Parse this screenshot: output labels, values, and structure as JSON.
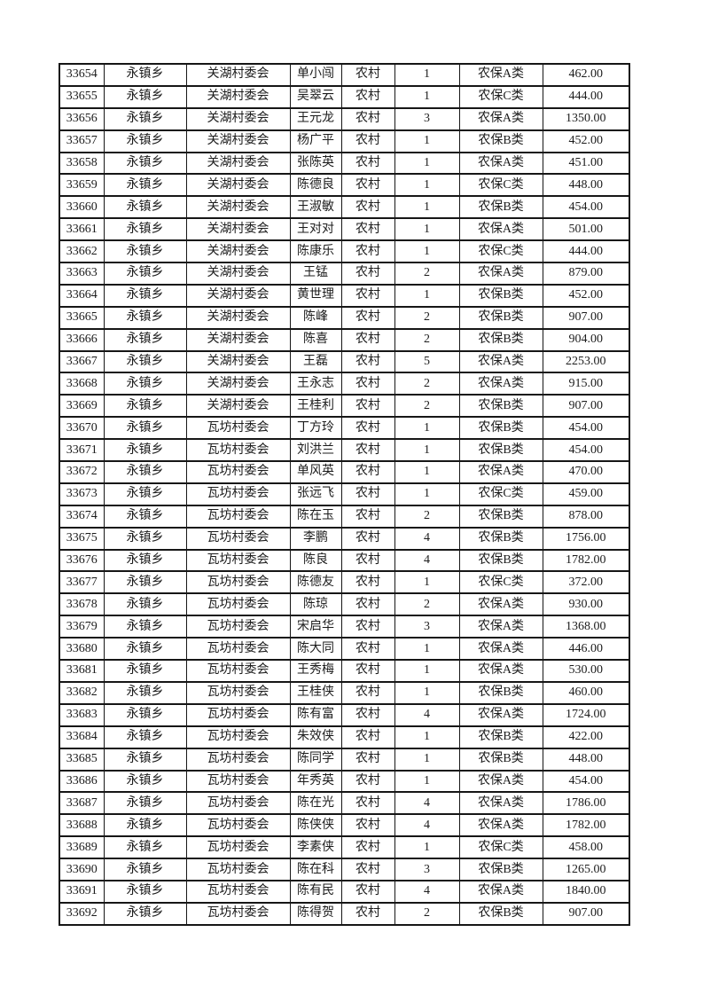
{
  "table": {
    "rows": [
      [
        "33654",
        "永镇乡",
        "关湖村委会",
        "单小闯",
        "农村",
        "1",
        "农保A类",
        "462.00"
      ],
      [
        "33655",
        "永镇乡",
        "关湖村委会",
        "吴翠云",
        "农村",
        "1",
        "农保C类",
        "444.00"
      ],
      [
        "33656",
        "永镇乡",
        "关湖村委会",
        "王元龙",
        "农村",
        "3",
        "农保A类",
        "1350.00"
      ],
      [
        "33657",
        "永镇乡",
        "关湖村委会",
        "杨广平",
        "农村",
        "1",
        "农保B类",
        "452.00"
      ],
      [
        "33658",
        "永镇乡",
        "关湖村委会",
        "张陈英",
        "农村",
        "1",
        "农保A类",
        "451.00"
      ],
      [
        "33659",
        "永镇乡",
        "关湖村委会",
        "陈德良",
        "农村",
        "1",
        "农保C类",
        "448.00"
      ],
      [
        "33660",
        "永镇乡",
        "关湖村委会",
        "王淑敏",
        "农村",
        "1",
        "农保B类",
        "454.00"
      ],
      [
        "33661",
        "永镇乡",
        "关湖村委会",
        "王对对",
        "农村",
        "1",
        "农保A类",
        "501.00"
      ],
      [
        "33662",
        "永镇乡",
        "关湖村委会",
        "陈康乐",
        "农村",
        "1",
        "农保C类",
        "444.00"
      ],
      [
        "33663",
        "永镇乡",
        "关湖村委会",
        "王锰",
        "农村",
        "2",
        "农保A类",
        "879.00"
      ],
      [
        "33664",
        "永镇乡",
        "关湖村委会",
        "黄世理",
        "农村",
        "1",
        "农保B类",
        "452.00"
      ],
      [
        "33665",
        "永镇乡",
        "关湖村委会",
        "陈峰",
        "农村",
        "2",
        "农保B类",
        "907.00"
      ],
      [
        "33666",
        "永镇乡",
        "关湖村委会",
        "陈喜",
        "农村",
        "2",
        "农保B类",
        "904.00"
      ],
      [
        "33667",
        "永镇乡",
        "关湖村委会",
        "王磊",
        "农村",
        "5",
        "农保A类",
        "2253.00"
      ],
      [
        "33668",
        "永镇乡",
        "关湖村委会",
        "王永志",
        "农村",
        "2",
        "农保A类",
        "915.00"
      ],
      [
        "33669",
        "永镇乡",
        "关湖村委会",
        "王桂利",
        "农村",
        "2",
        "农保B类",
        "907.00"
      ],
      [
        "33670",
        "永镇乡",
        "瓦坊村委会",
        "丁方玲",
        "农村",
        "1",
        "农保B类",
        "454.00"
      ],
      [
        "33671",
        "永镇乡",
        "瓦坊村委会",
        "刘洪兰",
        "农村",
        "1",
        "农保B类",
        "454.00"
      ],
      [
        "33672",
        "永镇乡",
        "瓦坊村委会",
        "单风英",
        "农村",
        "1",
        "农保A类",
        "470.00"
      ],
      [
        "33673",
        "永镇乡",
        "瓦坊村委会",
        "张远飞",
        "农村",
        "1",
        "农保C类",
        "459.00"
      ],
      [
        "33674",
        "永镇乡",
        "瓦坊村委会",
        "陈在玉",
        "农村",
        "2",
        "农保B类",
        "878.00"
      ],
      [
        "33675",
        "永镇乡",
        "瓦坊村委会",
        "李鹏",
        "农村",
        "4",
        "农保B类",
        "1756.00"
      ],
      [
        "33676",
        "永镇乡",
        "瓦坊村委会",
        "陈良",
        "农村",
        "4",
        "农保B类",
        "1782.00"
      ],
      [
        "33677",
        "永镇乡",
        "瓦坊村委会",
        "陈德友",
        "农村",
        "1",
        "农保C类",
        "372.00"
      ],
      [
        "33678",
        "永镇乡",
        "瓦坊村委会",
        "陈琼",
        "农村",
        "2",
        "农保A类",
        "930.00"
      ],
      [
        "33679",
        "永镇乡",
        "瓦坊村委会",
        "宋启华",
        "农村",
        "3",
        "农保A类",
        "1368.00"
      ],
      [
        "33680",
        "永镇乡",
        "瓦坊村委会",
        "陈大同",
        "农村",
        "1",
        "农保A类",
        "446.00"
      ],
      [
        "33681",
        "永镇乡",
        "瓦坊村委会",
        "王秀梅",
        "农村",
        "1",
        "农保A类",
        "530.00"
      ],
      [
        "33682",
        "永镇乡",
        "瓦坊村委会",
        "王桂侠",
        "农村",
        "1",
        "农保B类",
        "460.00"
      ],
      [
        "33683",
        "永镇乡",
        "瓦坊村委会",
        "陈有富",
        "农村",
        "4",
        "农保A类",
        "1724.00"
      ],
      [
        "33684",
        "永镇乡",
        "瓦坊村委会",
        "朱效侠",
        "农村",
        "1",
        "农保B类",
        "422.00"
      ],
      [
        "33685",
        "永镇乡",
        "瓦坊村委会",
        "陈同学",
        "农村",
        "1",
        "农保B类",
        "448.00"
      ],
      [
        "33686",
        "永镇乡",
        "瓦坊村委会",
        "年秀英",
        "农村",
        "1",
        "农保A类",
        "454.00"
      ],
      [
        "33687",
        "永镇乡",
        "瓦坊村委会",
        "陈在光",
        "农村",
        "4",
        "农保A类",
        "1786.00"
      ],
      [
        "33688",
        "永镇乡",
        "瓦坊村委会",
        "陈侠侠",
        "农村",
        "4",
        "农保A类",
        "1782.00"
      ],
      [
        "33689",
        "永镇乡",
        "瓦坊村委会",
        "李素侠",
        "农村",
        "1",
        "农保C类",
        "458.00"
      ],
      [
        "33690",
        "永镇乡",
        "瓦坊村委会",
        "陈在科",
        "农村",
        "3",
        "农保B类",
        "1265.00"
      ],
      [
        "33691",
        "永镇乡",
        "瓦坊村委会",
        "陈有民",
        "农村",
        "4",
        "农保A类",
        "1840.00"
      ],
      [
        "33692",
        "永镇乡",
        "瓦坊村委会",
        "陈得贺",
        "农村",
        "2",
        "农保B类",
        "907.00"
      ]
    ]
  }
}
